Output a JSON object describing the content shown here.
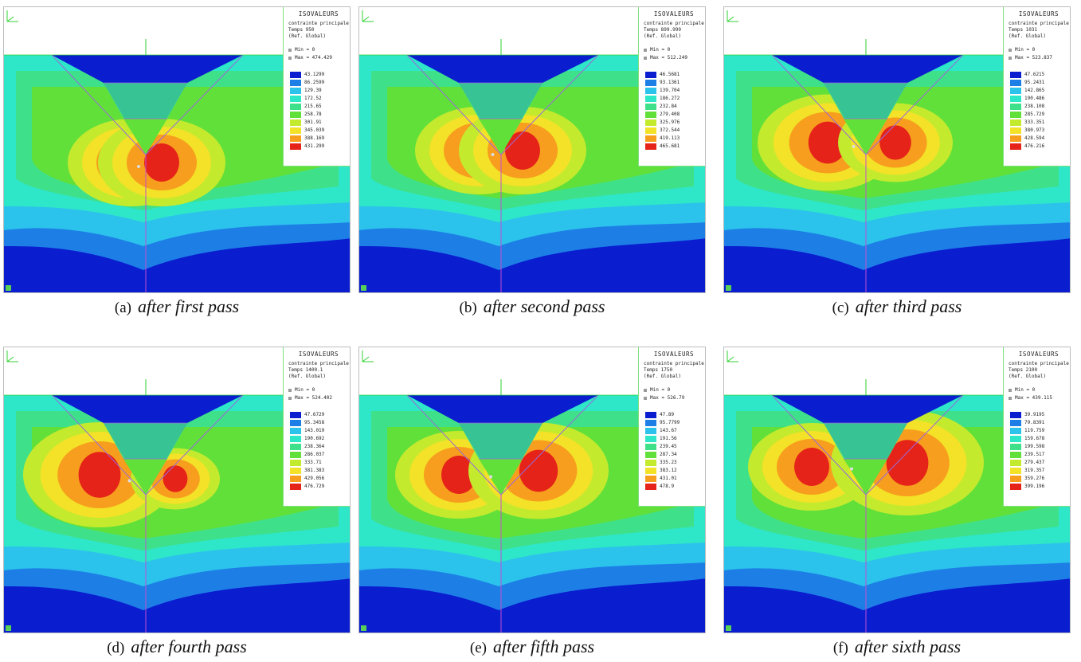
{
  "panels": [
    {
      "letter": "(a)",
      "caption": "after first pass",
      "title": "ISOVALEURS",
      "sub1": "contrainte principale",
      "sub2": "Temps 950",
      "sub3": "(Ref. Global)",
      "min": "Min = 0",
      "max": "Max = 474.429",
      "values": [
        "43.1299",
        "86.2599",
        "129.39",
        "172.52",
        "215.65",
        "258.78",
        "301.91",
        "345.039",
        "388.169",
        "431.299"
      ]
    },
    {
      "letter": "(b)",
      "caption": "after second pass",
      "title": "ISOVALEURS",
      "sub1": "contrainte principale",
      "sub2": "Temps 899.999",
      "sub3": "(Ref. Global)",
      "min": "Min = 0",
      "max": "Max = 512.249",
      "values": [
        "46.5681",
        "93.1361",
        "139.704",
        "186.272",
        "232.84",
        "279.408",
        "325.976",
        "372.544",
        "419.113",
        "465.681"
      ]
    },
    {
      "letter": "(c)",
      "caption": "after third pass",
      "title": "ISOVALEURS",
      "sub1": "contrainte principale",
      "sub2": "Temps 1031",
      "sub3": "(Ref. Global)",
      "min": "Min = 0",
      "max": "Max = 523.837",
      "values": [
        "47.6215",
        "95.2431",
        "142.865",
        "190.486",
        "238.108",
        "285.729",
        "333.351",
        "380.973",
        "428.594",
        "476.216"
      ]
    },
    {
      "letter": "(d)",
      "caption": "after fourth pass",
      "title": "ISOVALEURS",
      "sub1": "contrainte principale",
      "sub2": "Temps 1400.1",
      "sub3": "(Ref. Global)",
      "min": "Min = 0",
      "max": "Max = 524.402",
      "values": [
        "47.6729",
        "95.3458",
        "143.019",
        "190.692",
        "238.364",
        "286.037",
        "333.71",
        "381.383",
        "429.056",
        "476.729"
      ]
    },
    {
      "letter": "(e)",
      "caption": "after fifth pass",
      "title": "ISOVALEURS",
      "sub1": "contrainte principale",
      "sub2": "Temps 1750",
      "sub3": "(Ref. Global)",
      "min": "Min = 0",
      "max": "Max = 526.79",
      "values": [
        "47.89",
        "95.7799",
        "143.67",
        "191.56",
        "239.45",
        "287.34",
        "335.23",
        "383.12",
        "431.01",
        "478.9"
      ]
    },
    {
      "letter": "(f)",
      "caption": "after sixth pass",
      "title": "ISOVALEURS",
      "sub1": "contrainte principale",
      "sub2": "Temps 2100",
      "sub3": "(Ref. Global)",
      "min": "Min = 0",
      "max": "Max = 439.115",
      "values": [
        "39.9195",
        "79.8391",
        "119.759",
        "159.678",
        "199.598",
        "239.517",
        "279.437",
        "319.357",
        "359.276",
        "399.196"
      ]
    }
  ],
  "swatch_colors": [
    "#0a1ed0",
    "#1d7fe6",
    "#2bc3ec",
    "#2ee6c8",
    "#3fe08a",
    "#62e03a",
    "#c4ea2e",
    "#f3e227",
    "#f79e1e",
    "#e52318"
  ],
  "field_colors": [
    "#0a1ed0",
    "#1d7fe6",
    "#2bc3ec",
    "#2ee6c8",
    "#3fe08a",
    "#62e03a",
    "#c4ea2e",
    "#f3e227",
    "#f79e1e",
    "#e52318"
  ]
}
